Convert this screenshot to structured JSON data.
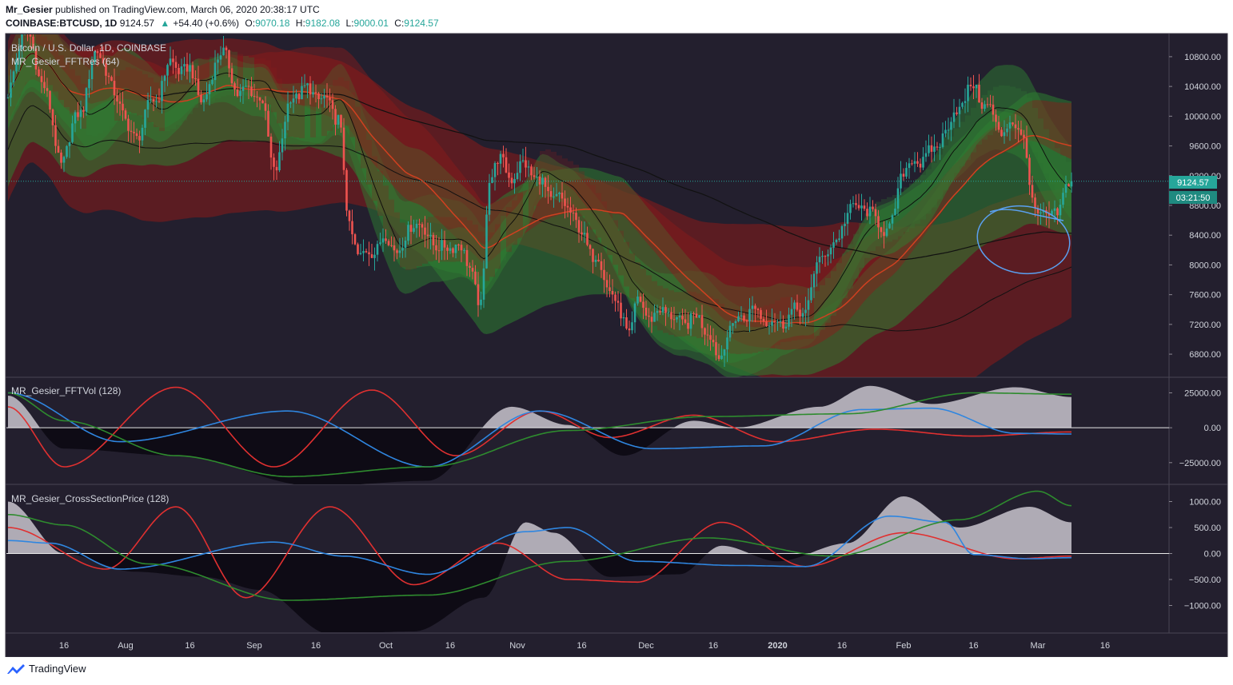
{
  "header": {
    "author": "Mr_Gesier",
    "published_text": "published on TradingView.com, March 06, 2020 20:38:17 UTC",
    "symbol": "COINBASE:BTCUSD, 1D",
    "last": "9124.57",
    "change": "+54.40 (+0.6%)",
    "open_label": "O:",
    "open": "9070.18",
    "high_label": "H:",
    "high": "9182.08",
    "low_label": "L:",
    "low": "9000.01",
    "close_label": "C:",
    "close": "9124.57"
  },
  "main_pane": {
    "title": "Bitcoin / U.S. Dollar, 1D, COINBASE",
    "indicator": "MR_Gesier_FFTRes (64)",
    "price_tag": "9124.57",
    "countdown_tag": "03:21:50"
  },
  "pane2": {
    "indicator": "MR_Gesier_FFTVol (128)"
  },
  "pane3": {
    "indicator": "MR_Gesier_CrossSectionPrice (128)"
  },
  "footer": {
    "brand": "TradingView"
  },
  "colors": {
    "background": "#231f2e",
    "up": "#26a69a",
    "down": "#ef5350",
    "green_band": "#2e7d32",
    "red_band": "#8b1a1a",
    "blue": "#2f86e0",
    "red_line": "#e03030",
    "green_line": "#2e8b2e",
    "area": "#c8c4cc",
    "ellipse": "#5aa0f0"
  },
  "chart_data": [
    {
      "type": "candlestick",
      "title": "Bitcoin / U.S. Dollar, 1D, COINBASE",
      "x_tick_labels": [
        "16",
        "Aug",
        "16",
        "Sep",
        "16",
        "Oct",
        "16",
        "Nov",
        "16",
        "Dec",
        "16",
        "2020",
        "16",
        "Feb",
        "16",
        "Mar",
        "16"
      ],
      "y_tick_labels": [
        "10800.00",
        "10400.00",
        "10000.00",
        "9600.00",
        "9200.00",
        "8800.00",
        "8400.00",
        "8000.00",
        "7600.00",
        "7200.00",
        "6800.00"
      ],
      "ylim": [
        6500,
        11100
      ],
      "close_series_anchors": [
        [
          0,
          10300
        ],
        [
          6,
          11200
        ],
        [
          12,
          10500
        ],
        [
          19,
          9400
        ],
        [
          26,
          10100
        ],
        [
          32,
          10900
        ],
        [
          38,
          10300
        ],
        [
          45,
          9700
        ],
        [
          52,
          10200
        ],
        [
          58,
          10700
        ],
        [
          65,
          10600
        ],
        [
          70,
          10200
        ],
        [
          76,
          10900
        ],
        [
          82,
          10350
        ],
        [
          90,
          10300
        ],
        [
          95,
          9300
        ],
        [
          102,
          10300
        ],
        [
          108,
          10350
        ],
        [
          113,
          10200
        ],
        [
          118,
          10000
        ],
        [
          122,
          8500
        ],
        [
          126,
          8100
        ],
        [
          130,
          8200
        ],
        [
          135,
          8350
        ],
        [
          140,
          8200
        ],
        [
          145,
          8600
        ],
        [
          150,
          8400
        ],
        [
          155,
          8200
        ],
        [
          160,
          8300
        ],
        [
          165,
          8000
        ],
        [
          169,
          7400
        ],
        [
          172,
          9200
        ],
        [
          175,
          9400
        ],
        [
          180,
          9200
        ],
        [
          185,
          9350
        ],
        [
          190,
          9100
        ],
        [
          195,
          8900
        ],
        [
          200,
          8800
        ],
        [
          205,
          8400
        ],
        [
          210,
          8100
        ],
        [
          215,
          7700
        ],
        [
          219,
          7300
        ],
        [
          222,
          7100
        ],
        [
          225,
          7500
        ],
        [
          230,
          7300
        ],
        [
          235,
          7400
        ],
        [
          240,
          7200
        ],
        [
          245,
          7300
        ],
        [
          250,
          7150
        ],
        [
          254,
          6700
        ],
        [
          257,
          7100
        ],
        [
          262,
          7300
        ],
        [
          266,
          7400
        ],
        [
          270,
          7300
        ],
        [
          275,
          7200
        ],
        [
          280,
          7350
        ],
        [
          285,
          7400
        ],
        [
          290,
          8100
        ],
        [
          295,
          8250
        ],
        [
          300,
          8700
        ],
        [
          305,
          8800
        ],
        [
          310,
          8600
        ],
        [
          315,
          8450
        ],
        [
          320,
          9300
        ],
        [
          325,
          9400
        ],
        [
          330,
          9500
        ],
        [
          335,
          9800
        ],
        [
          340,
          10150
        ],
        [
          345,
          10400
        ],
        [
          350,
          10100
        ],
        [
          355,
          9800
        ],
        [
          360,
          9900
        ],
        [
          363,
          9700
        ],
        [
          366,
          8800
        ],
        [
          369,
          8700
        ],
        [
          372,
          8600
        ],
        [
          375,
          8750
        ],
        [
          378,
          9000
        ],
        [
          380,
          9124.57
        ]
      ]
    },
    {
      "type": "line",
      "title": "MR_Gesier_FFTVol (128)",
      "y_tick_labels": [
        "25000.00",
        "0.00",
        "−25000.00"
      ],
      "ylim": [
        -40000,
        35000
      ],
      "series": [
        {
          "name": "red",
          "anchors": [
            [
              0,
              15000
            ],
            [
              20,
              -28000
            ],
            [
              60,
              29000
            ],
            [
              95,
              -28000
            ],
            [
              130,
              27000
            ],
            [
              160,
              -20000
            ],
            [
              190,
              12000
            ],
            [
              215,
              -7000
            ],
            [
              245,
              9000
            ],
            [
              275,
              -10000
            ],
            [
              310,
              -1000
            ],
            [
              345,
              -6000
            ],
            [
              380,
              -3000
            ]
          ]
        },
        {
          "name": "blue",
          "anchors": [
            [
              0,
              25000
            ],
            [
              40,
              -10000
            ],
            [
              100,
              12000
            ],
            [
              150,
              -28000
            ],
            [
              190,
              12000
            ],
            [
              230,
              -15000
            ],
            [
              270,
              -13000
            ],
            [
              305,
              13000
            ],
            [
              330,
              14000
            ],
            [
              360,
              -4000
            ],
            [
              380,
              -4500
            ]
          ]
        },
        {
          "name": "green",
          "anchors": [
            [
              0,
              25000
            ],
            [
              20,
              5000
            ],
            [
              60,
              -20000
            ],
            [
              100,
              -35000
            ],
            [
              150,
              -28000
            ],
            [
              200,
              -2000
            ],
            [
              250,
              8000
            ],
            [
              300,
              10000
            ],
            [
              345,
              25000
            ],
            [
              380,
              24000
            ]
          ]
        },
        {
          "name": "area",
          "anchors": [
            [
              0,
              23000
            ],
            [
              20,
              -15000
            ],
            [
              60,
              -20000
            ],
            [
              110,
              -42000
            ],
            [
              150,
              -38000
            ],
            [
              180,
              15000
            ],
            [
              200,
              2000
            ],
            [
              220,
              -20000
            ],
            [
              245,
              5000
            ],
            [
              260,
              0
            ],
            [
              290,
              15000
            ],
            [
              308,
              30000
            ],
            [
              330,
              17000
            ],
            [
              360,
              29000
            ],
            [
              380,
              22000
            ]
          ]
        }
      ]
    },
    {
      "type": "line",
      "title": "MR_Gesier_CrossSectionPrice (128)",
      "y_tick_labels": [
        "1000.00",
        "500.00",
        "0.00",
        "−500.00",
        "−1000.00"
      ],
      "ylim": [
        -1500,
        1300
      ],
      "series": [
        {
          "name": "red",
          "anchors": [
            [
              0,
              500
            ],
            [
              35,
              -300
            ],
            [
              60,
              900
            ],
            [
              85,
              -850
            ],
            [
              115,
              900
            ],
            [
              145,
              -600
            ],
            [
              175,
              200
            ],
            [
              200,
              -500
            ],
            [
              225,
              -550
            ],
            [
              255,
              600
            ],
            [
              285,
              -250
            ],
            [
              320,
              400
            ],
            [
              360,
              -100
            ],
            [
              380,
              -50
            ]
          ]
        },
        {
          "name": "blue",
          "anchors": [
            [
              0,
              250
            ],
            [
              15,
              200
            ],
            [
              40,
              -300
            ],
            [
              95,
              220
            ],
            [
              120,
              -50
            ],
            [
              150,
              -400
            ],
            [
              185,
              420
            ],
            [
              200,
              500
            ],
            [
              225,
              -150
            ],
            [
              260,
              -230
            ],
            [
              285,
              -250
            ],
            [
              315,
              720
            ],
            [
              335,
              600
            ],
            [
              345,
              -20
            ],
            [
              365,
              -100
            ],
            [
              380,
              -80
            ]
          ]
        },
        {
          "name": "green",
          "anchors": [
            [
              0,
              750
            ],
            [
              20,
              550
            ],
            [
              50,
              -200
            ],
            [
              100,
              -900
            ],
            [
              150,
              -800
            ],
            [
              200,
              -150
            ],
            [
              250,
              300
            ],
            [
              295,
              -50
            ],
            [
              340,
              650
            ],
            [
              368,
              1200
            ],
            [
              380,
              920
            ]
          ]
        },
        {
          "name": "area",
          "anchors": [
            [
              0,
              1000
            ],
            [
              20,
              0
            ],
            [
              45,
              -350
            ],
            [
              70,
              -450
            ],
            [
              90,
              -700
            ],
            [
              115,
              -1550
            ],
            [
              145,
              -1500
            ],
            [
              170,
              -850
            ],
            [
              185,
              600
            ],
            [
              195,
              400
            ],
            [
              215,
              -450
            ],
            [
              240,
              -400
            ],
            [
              255,
              150
            ],
            [
              275,
              -150
            ],
            [
              300,
              200
            ],
            [
              320,
              1100
            ],
            [
              340,
              500
            ],
            [
              365,
              900
            ],
            [
              380,
              600
            ]
          ]
        }
      ]
    }
  ]
}
